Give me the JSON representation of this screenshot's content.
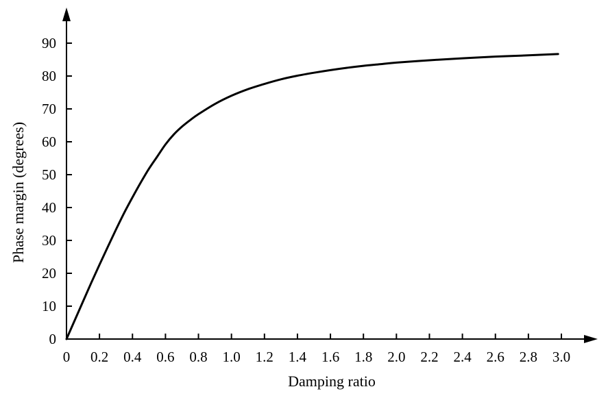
{
  "chart_data": {
    "type": "line",
    "title": "",
    "xlabel": "Damping ratio",
    "ylabel": "Phase margin (degrees)",
    "xlim": [
      0,
      3.0
    ],
    "ylim": [
      0,
      90
    ],
    "grid": false,
    "x_ticks": [
      "0",
      "0.2",
      "0.4",
      "0.6",
      "0.8",
      "1.0",
      "1.2",
      "1.4",
      "1.6",
      "1.8",
      "2.0",
      "2.2",
      "2.4",
      "2.6",
      "2.8",
      "3.0"
    ],
    "x_tick_values": [
      0,
      0.2,
      0.4,
      0.6,
      0.8,
      1.0,
      1.2,
      1.4,
      1.6,
      1.8,
      2.0,
      2.2,
      2.4,
      2.6,
      2.8,
      3.0
    ],
    "y_ticks": [
      "0",
      "10",
      "20",
      "30",
      "40",
      "50",
      "60",
      "70",
      "80",
      "90"
    ],
    "y_tick_values": [
      0,
      10,
      20,
      30,
      40,
      50,
      60,
      70,
      80,
      90
    ],
    "series": [
      {
        "color": "#000000",
        "x": [
          0,
          0.05,
          0.1,
          0.15,
          0.2,
          0.25,
          0.3,
          0.35,
          0.4,
          0.45,
          0.5,
          0.55,
          0.6,
          0.65,
          0.7,
          0.75,
          0.8,
          0.9,
          1.0,
          1.1,
          1.2,
          1.3,
          1.4,
          1.5,
          1.6,
          1.7,
          1.8,
          1.9,
          2.0,
          2.2,
          2.4,
          2.6,
          2.8,
          2.98
        ],
        "values": [
          0,
          5.7,
          11.4,
          17.1,
          22.6,
          28.0,
          33.3,
          38.4,
          43.1,
          47.6,
          51.8,
          55.5,
          59.2,
          62.2,
          64.6,
          66.6,
          68.4,
          71.5,
          74.0,
          76.0,
          77.6,
          79.0,
          80.1,
          81.0,
          81.8,
          82.5,
          83.1,
          83.6,
          84.1,
          84.8,
          85.4,
          85.9,
          86.3,
          86.7
        ]
      }
    ]
  }
}
